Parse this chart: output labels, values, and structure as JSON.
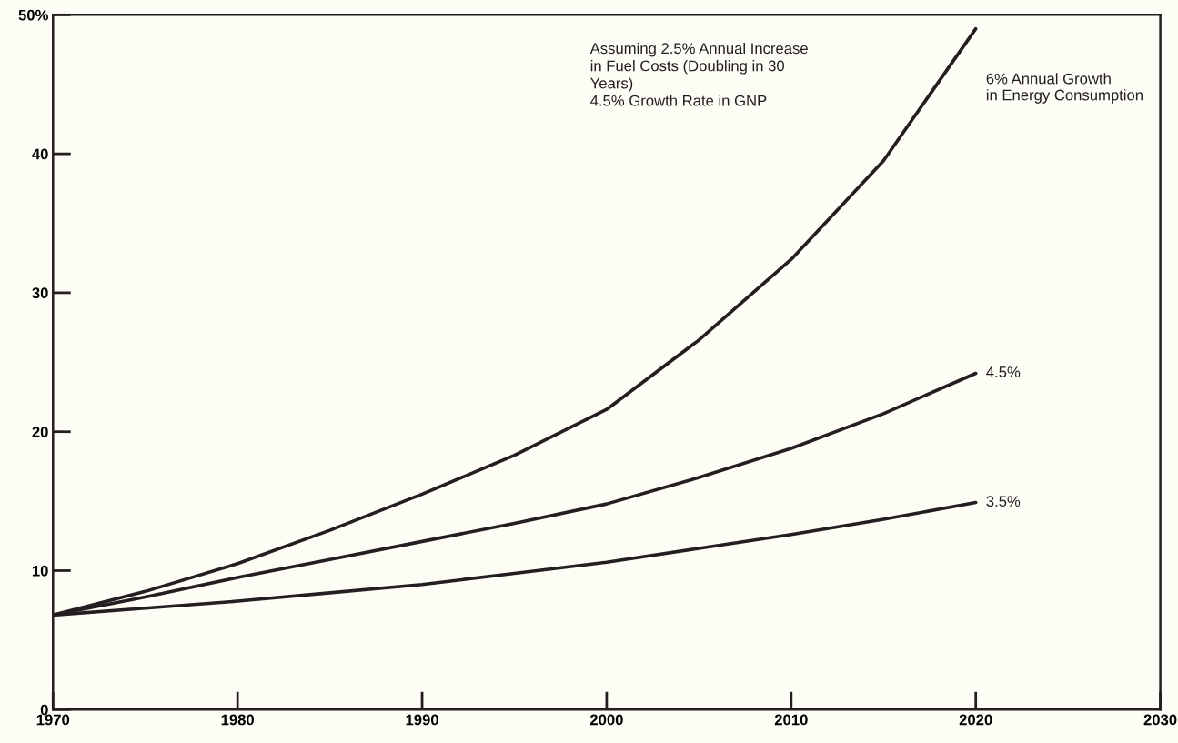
{
  "chart_data": {
    "type": "line",
    "x": [
      1970,
      1975,
      1980,
      1985,
      1990,
      1995,
      2000,
      2005,
      2010,
      2015,
      2020
    ],
    "series": [
      {
        "name": "6% Annual Growth\nin Energy Consumption",
        "color": "#231f20",
        "values": [
          6.8,
          8.5,
          10.5,
          12.9,
          15.5,
          18.3,
          21.6,
          26.6,
          32.4,
          39.5,
          49
        ]
      },
      {
        "name": "4.5%",
        "color": "#231f20",
        "values": [
          6.8,
          8.1,
          9.5,
          10.8,
          12.1,
          13.4,
          14.8,
          16.7,
          18.8,
          21.3,
          24.2
        ]
      },
      {
        "name": "3.5%",
        "color": "#231f20",
        "values": [
          6.8,
          7.3,
          7.8,
          8.4,
          9.0,
          9.8,
          10.6,
          11.6,
          12.6,
          13.7,
          14.9
        ]
      }
    ],
    "xlim": [
      1970,
      2030
    ],
    "xticks": [
      1970,
      1980,
      1990,
      2000,
      2010,
      2020,
      2030
    ],
    "ylim": [
      0,
      50
    ],
    "yticks": [
      0,
      10,
      20,
      30,
      40,
      {
        "value": 50,
        "label": "50%"
      }
    ],
    "annotations": [
      "Assuming 2.5% Annual Increase\nin Fuel Costs (Doubling in 30\nYears)\n4.5% Growth Rate in GNP"
    ],
    "grid": false,
    "legend": false,
    "marker": "none",
    "line_style": "solid"
  }
}
